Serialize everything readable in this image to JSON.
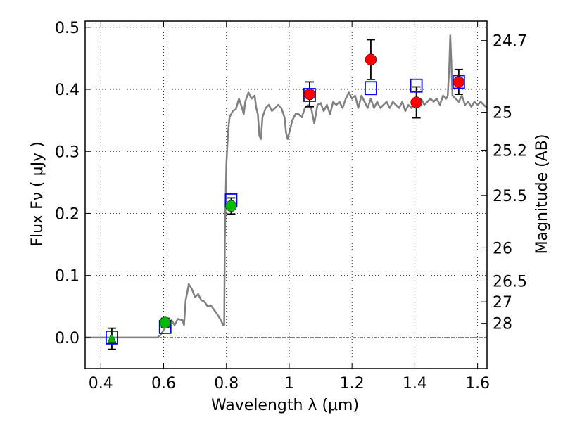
{
  "chart_data": {
    "type": "scatter",
    "xlabel": "Wavelength  λ (μm)",
    "ylabel": "Flux  Fν  ( μJy )",
    "y2label": "Magnitude (AB)",
    "xlim": [
      0.35,
      1.63
    ],
    "ylim": [
      -0.05,
      0.51
    ],
    "xticks": [
      0.4,
      0.6,
      0.8,
      1.0,
      1.2,
      1.4,
      1.6
    ],
    "xtick_labels": [
      "0.4",
      "0.6",
      "0.8",
      "1",
      "1.2",
      "1.4",
      "1.6"
    ],
    "yticks": [
      0.0,
      0.1,
      0.2,
      0.3,
      0.4,
      0.5
    ],
    "ytick_labels": [
      "0.0",
      "0.1",
      "0.2",
      "0.3",
      "0.4",
      "0.5"
    ],
    "mag_ticks": [
      24.7,
      25,
      25.2,
      25.5,
      26,
      26.5,
      27,
      28
    ],
    "mag_tick_labels": [
      "24.7",
      "25",
      "25.2",
      "25.5",
      "26",
      "26.5",
      "27",
      "28"
    ],
    "grid": true,
    "zero_line": true,
    "colors": {
      "model": "#808080",
      "model_points": "#0000ff",
      "green": "#00bb00",
      "red": "#ff0000",
      "errorbar": "#000000"
    },
    "model_spectrum": [
      [
        0.35,
        0.0
      ],
      [
        0.58,
        0.0
      ],
      [
        0.59,
        0.004
      ],
      [
        0.6,
        0.012
      ],
      [
        0.61,
        0.02
      ],
      [
        0.625,
        0.028
      ],
      [
        0.635,
        0.02
      ],
      [
        0.645,
        0.03
      ],
      [
        0.66,
        0.028
      ],
      [
        0.665,
        0.02
      ],
      [
        0.67,
        0.06
      ],
      [
        0.675,
        0.072
      ],
      [
        0.68,
        0.086
      ],
      [
        0.69,
        0.078
      ],
      [
        0.7,
        0.065
      ],
      [
        0.71,
        0.07
      ],
      [
        0.72,
        0.06
      ],
      [
        0.73,
        0.058
      ],
      [
        0.74,
        0.05
      ],
      [
        0.75,
        0.052
      ],
      [
        0.76,
        0.045
      ],
      [
        0.77,
        0.038
      ],
      [
        0.78,
        0.03
      ],
      [
        0.785,
        0.025
      ],
      [
        0.79,
        0.02
      ],
      [
        0.793,
        0.02
      ],
      [
        0.795,
        0.16
      ],
      [
        0.8,
        0.28
      ],
      [
        0.805,
        0.33
      ],
      [
        0.81,
        0.355
      ],
      [
        0.82,
        0.365
      ],
      [
        0.83,
        0.368
      ],
      [
        0.84,
        0.385
      ],
      [
        0.85,
        0.37
      ],
      [
        0.855,
        0.36
      ],
      [
        0.86,
        0.38
      ],
      [
        0.87,
        0.395
      ],
      [
        0.875,
        0.39
      ],
      [
        0.88,
        0.385
      ],
      [
        0.89,
        0.39
      ],
      [
        0.895,
        0.37
      ],
      [
        0.9,
        0.36
      ],
      [
        0.905,
        0.325
      ],
      [
        0.91,
        0.32
      ],
      [
        0.915,
        0.355
      ],
      [
        0.925,
        0.37
      ],
      [
        0.935,
        0.375
      ],
      [
        0.945,
        0.365
      ],
      [
        0.955,
        0.37
      ],
      [
        0.965,
        0.375
      ],
      [
        0.975,
        0.37
      ],
      [
        0.985,
        0.355
      ],
      [
        0.99,
        0.33
      ],
      [
        0.995,
        0.32
      ],
      [
        1.0,
        0.33
      ],
      [
        1.01,
        0.35
      ],
      [
        1.02,
        0.36
      ],
      [
        1.03,
        0.36
      ],
      [
        1.04,
        0.355
      ],
      [
        1.05,
        0.37
      ],
      [
        1.06,
        0.375
      ],
      [
        1.07,
        0.37
      ],
      [
        1.08,
        0.345
      ],
      [
        1.09,
        0.375
      ],
      [
        1.1,
        0.378
      ],
      [
        1.11,
        0.365
      ],
      [
        1.12,
        0.375
      ],
      [
        1.13,
        0.36
      ],
      [
        1.14,
        0.38
      ],
      [
        1.15,
        0.375
      ],
      [
        1.16,
        0.38
      ],
      [
        1.17,
        0.37
      ],
      [
        1.18,
        0.385
      ],
      [
        1.19,
        0.395
      ],
      [
        1.2,
        0.385
      ],
      [
        1.21,
        0.39
      ],
      [
        1.22,
        0.37
      ],
      [
        1.23,
        0.39
      ],
      [
        1.24,
        0.38
      ],
      [
        1.25,
        0.37
      ],
      [
        1.26,
        0.385
      ],
      [
        1.27,
        0.37
      ],
      [
        1.28,
        0.38
      ],
      [
        1.29,
        0.37
      ],
      [
        1.3,
        0.375
      ],
      [
        1.31,
        0.38
      ],
      [
        1.32,
        0.37
      ],
      [
        1.33,
        0.38
      ],
      [
        1.34,
        0.375
      ],
      [
        1.35,
        0.37
      ],
      [
        1.36,
        0.38
      ],
      [
        1.37,
        0.365
      ],
      [
        1.38,
        0.375
      ],
      [
        1.39,
        0.37
      ],
      [
        1.4,
        0.38
      ],
      [
        1.41,
        0.375
      ],
      [
        1.42,
        0.385
      ],
      [
        1.43,
        0.375
      ],
      [
        1.44,
        0.38
      ],
      [
        1.45,
        0.385
      ],
      [
        1.46,
        0.38
      ],
      [
        1.47,
        0.385
      ],
      [
        1.48,
        0.375
      ],
      [
        1.49,
        0.39
      ],
      [
        1.5,
        0.385
      ],
      [
        1.505,
        0.39
      ],
      [
        1.51,
        0.44
      ],
      [
        1.513,
        0.487
      ],
      [
        1.516,
        0.45
      ],
      [
        1.52,
        0.39
      ],
      [
        1.53,
        0.385
      ],
      [
        1.54,
        0.38
      ],
      [
        1.55,
        0.39
      ],
      [
        1.56,
        0.375
      ],
      [
        1.57,
        0.38
      ],
      [
        1.58,
        0.372
      ],
      [
        1.59,
        0.38
      ],
      [
        1.6,
        0.375
      ],
      [
        1.61,
        0.38
      ],
      [
        1.62,
        0.375
      ],
      [
        1.63,
        0.37
      ]
    ],
    "model_points": [
      {
        "x": 0.435,
        "y": 0.0
      },
      {
        "x": 0.605,
        "y": 0.017
      },
      {
        "x": 0.815,
        "y": 0.221
      },
      {
        "x": 1.065,
        "y": 0.391
      },
      {
        "x": 1.26,
        "y": 0.402
      },
      {
        "x": 1.405,
        "y": 0.406
      },
      {
        "x": 1.54,
        "y": 0.412
      }
    ],
    "green_triangles": [
      {
        "x": 0.435,
        "y": -0.002,
        "err": 0.017
      }
    ],
    "green_points": [
      {
        "x": 0.605,
        "y": 0.024,
        "err": 0.007
      },
      {
        "x": 0.815,
        "y": 0.212,
        "err": 0.013
      }
    ],
    "red_points": [
      {
        "x": 1.065,
        "y": 0.392,
        "err": 0.02
      },
      {
        "x": 1.26,
        "y": 0.448,
        "err": 0.032
      },
      {
        "x": 1.405,
        "y": 0.379,
        "err": 0.025
      },
      {
        "x": 1.54,
        "y": 0.412,
        "err": 0.02
      }
    ]
  }
}
